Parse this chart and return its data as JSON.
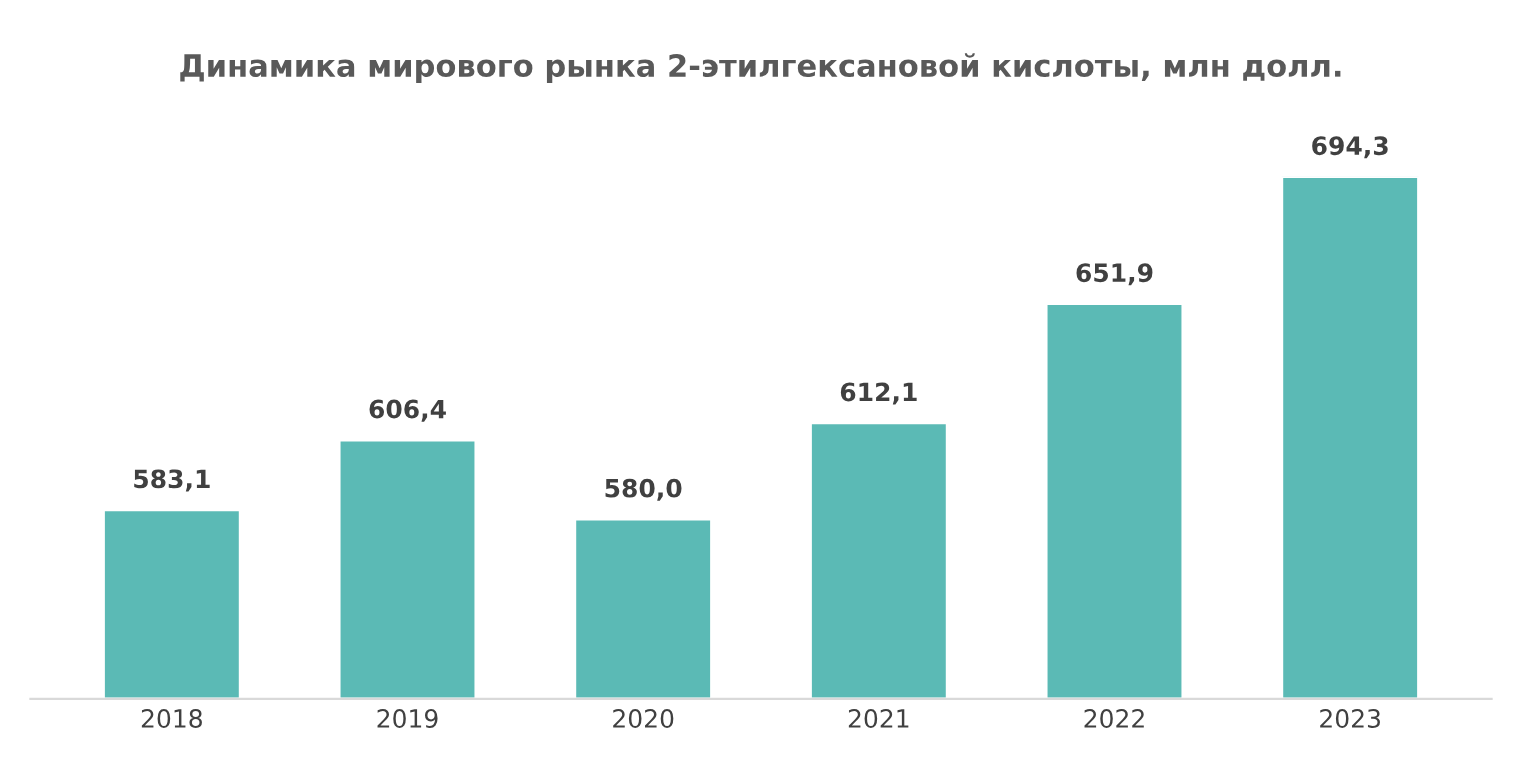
{
  "chart_data": {
    "type": "bar",
    "title": "Динамика мирового рынка 2-этилгексановой кислоты, млн долл.",
    "categories": [
      "2018",
      "2019",
      "2020",
      "2021",
      "2022",
      "2023"
    ],
    "values": [
      583.1,
      606.4,
      580.0,
      612.1,
      651.9,
      694.3
    ],
    "value_labels": [
      "583,1",
      "606,4",
      "580,0",
      "612,1",
      "651,9",
      "694,3"
    ],
    "color": "#5bbab5",
    "ylim": [
      520,
      694.3
    ],
    "tick_labels": "x",
    "grid": false,
    "legend": false
  }
}
